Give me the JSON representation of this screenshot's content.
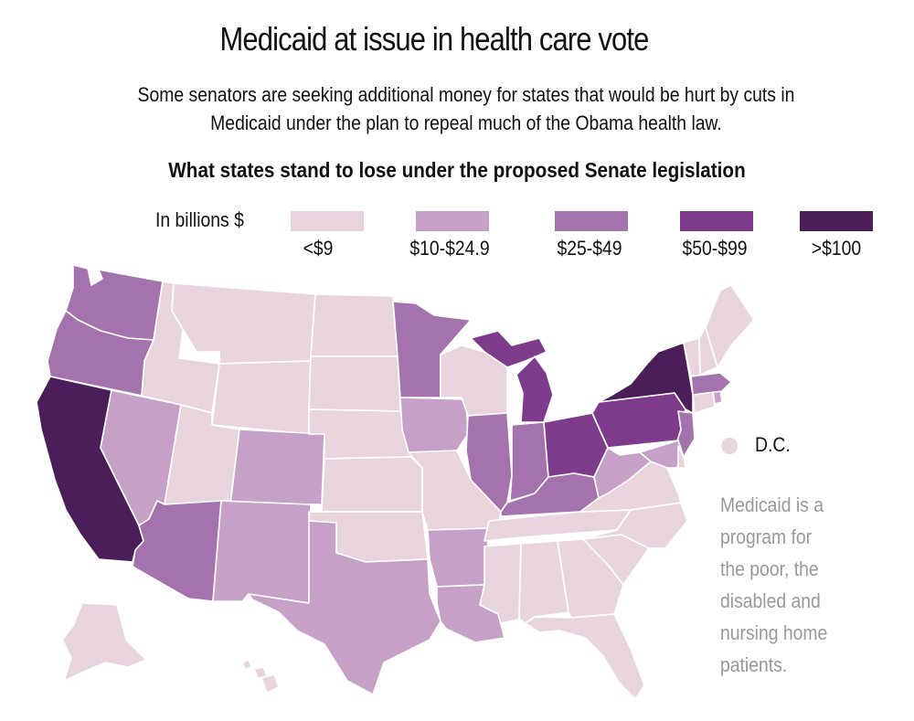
{
  "title": "Medicaid at issue in health care vote",
  "subtitle_line1": "Some senators are seeking additional money for states that would be hurt by cuts in",
  "subtitle_line2": "Medicaid under the plan to repeal much of the Obama health law.",
  "heading": "What states stand to lose under the proposed Senate legislation",
  "legend": {
    "title": "In billions $",
    "items": [
      {
        "label": "<$9",
        "color": "#e8d4dc"
      },
      {
        "label": "$10-$24.9",
        "color": "#c7a0c7"
      },
      {
        "label": "$25-$49",
        "color": "#a473ad"
      },
      {
        "label": "$50-$99",
        "color": "#7e3b8c"
      },
      {
        "label": ">$100",
        "color": "#4b1e59"
      }
    ]
  },
  "dc_label": "D.C.",
  "note": "Medicaid is a program for the poor, the disabled and nursing home patients.",
  "states": {
    "WA": 2,
    "OR": 2,
    "CA": 4,
    "NV": 1,
    "ID": 0,
    "MT": 0,
    "WY": 0,
    "UT": 0,
    "AZ": 2,
    "CO": 1,
    "NM": 1,
    "ND": 0,
    "SD": 0,
    "NE": 0,
    "KS": 0,
    "OK": 0,
    "TX": 1,
    "MN": 2,
    "IA": 1,
    "MO": 0,
    "AR": 1,
    "LA": 1,
    "WI": 0,
    "IL": 2,
    "MI": 3,
    "IN": 2,
    "OH": 3,
    "KY": 2,
    "TN": 0,
    "MS": 0,
    "AL": 0,
    "GA": 0,
    "FL": 0,
    "SC": 0,
    "NC": 0,
    "VA": 0,
    "WV": 1,
    "PA": 3,
    "NY": 4,
    "NJ": 2,
    "MD": 1,
    "DE": 0,
    "CT": 0,
    "RI": 1,
    "MA": 2,
    "VT": 0,
    "NH": 0,
    "ME": 0,
    "AK": 0,
    "HI": 0,
    "DC": 0
  }
}
